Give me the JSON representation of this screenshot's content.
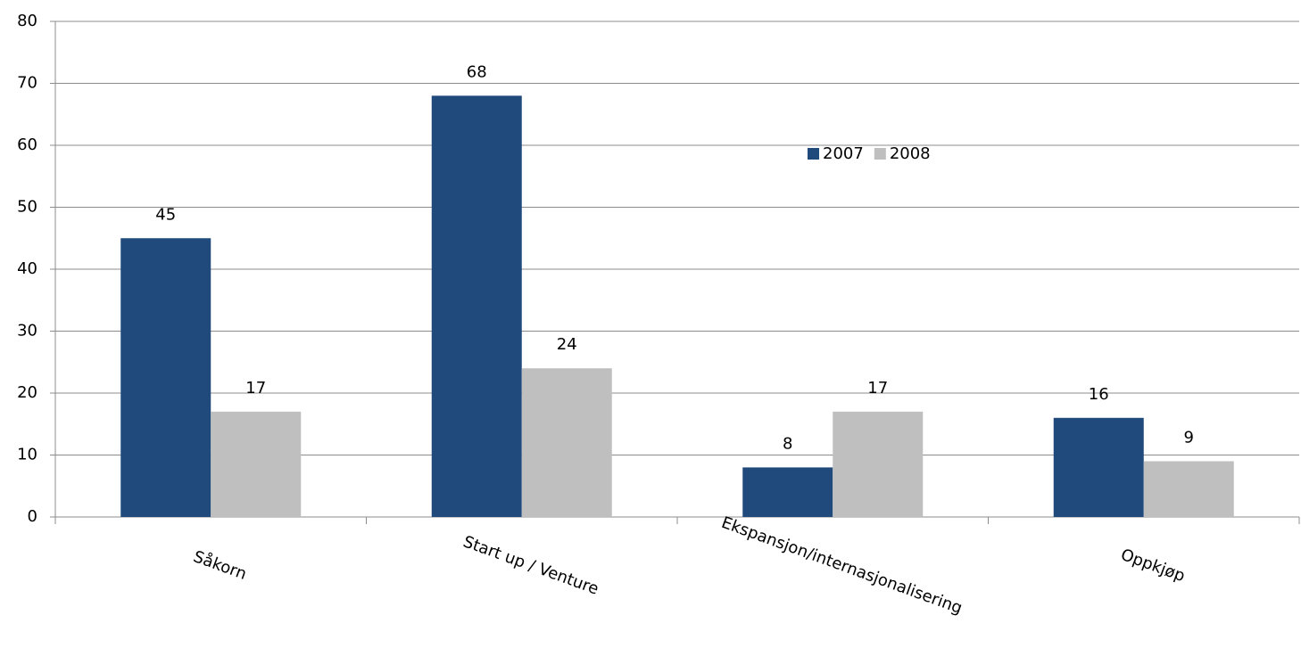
{
  "chart_data": {
    "type": "bar",
    "categories": [
      "Såkorn",
      "Start up / Venture",
      "Ekspansjon/internasjonalisering",
      "Oppkjøp"
    ],
    "series": [
      {
        "name": "2007",
        "color": "#214a7c",
        "values": [
          45,
          68,
          8,
          16
        ]
      },
      {
        "name": "2008",
        "color": "#bfbfbf",
        "values": [
          17,
          24,
          17,
          9
        ]
      }
    ],
    "ylim": [
      0,
      80
    ],
    "yticks": [
      0,
      10,
      20,
      30,
      40,
      50,
      60,
      70,
      80
    ],
    "grid": true,
    "legend": "top-right"
  }
}
